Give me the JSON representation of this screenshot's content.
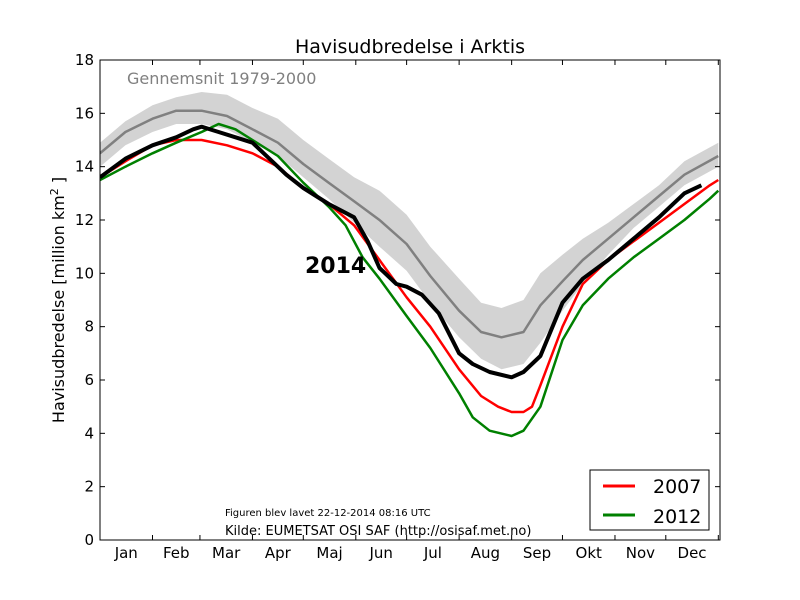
{
  "chart_data": {
    "type": "line",
    "title": "Havisudbredelse i Arktis",
    "ylabel": "Havisudbredelse [million km",
    "ylabel_sup": "2",
    "ylabel_end": " ]",
    "ylim": [
      0,
      18
    ],
    "xlim": [
      0,
      366
    ],
    "yticks": [
      0,
      2,
      4,
      6,
      8,
      10,
      12,
      14,
      16,
      18
    ],
    "months": [
      "Jan",
      "Feb",
      "Mar",
      "Apr",
      "Maj",
      "Jun",
      "Jul",
      "Aug",
      "Sep",
      "Okt",
      "Nov",
      "Dec"
    ],
    "month_starts": [
      0,
      31,
      59,
      90,
      120,
      151,
      181,
      212,
      243,
      273,
      304,
      334,
      365
    ],
    "grid": false,
    "legend_position": "bottom-right",
    "annotations": {
      "average_label": "Gennemsnit 1979-2000",
      "year_label": "2014",
      "created_note": "Figuren blev lavet 22-12-2014 08:16 UTC",
      "source_note": "Kilde: EUMETSAT OSI SAF (http://osisaf.met.no)"
    },
    "band": {
      "name": "",
      "color": "#d3d3d3",
      "x": [
        0,
        15,
        31,
        45,
        60,
        75,
        90,
        105,
        120,
        135,
        150,
        165,
        181,
        195,
        212,
        225,
        237,
        250,
        260,
        273,
        285,
        300,
        315,
        330,
        345,
        365
      ],
      "upper": [
        14.9,
        15.7,
        16.3,
        16.6,
        16.8,
        16.7,
        16.2,
        15.8,
        15.0,
        14.3,
        13.6,
        13.1,
        12.2,
        11.0,
        9.8,
        8.9,
        8.7,
        9.0,
        10.0,
        10.7,
        11.3,
        11.9,
        12.6,
        13.3,
        14.2,
        14.9
      ],
      "lower": [
        14.0,
        14.8,
        15.3,
        15.6,
        15.6,
        15.4,
        14.9,
        14.4,
        13.6,
        12.8,
        11.9,
        11.0,
        10.1,
        8.9,
        7.6,
        6.8,
        6.4,
        6.6,
        7.4,
        8.6,
        9.6,
        10.7,
        11.7,
        12.5,
        13.3,
        14.0
      ]
    },
    "series": [
      {
        "name": "",
        "label": "Gennemsnit 1979-2000",
        "color": "#808080",
        "width": 2.5,
        "x": [
          0,
          15,
          31,
          45,
          60,
          75,
          90,
          105,
          120,
          135,
          150,
          165,
          181,
          195,
          212,
          225,
          237,
          250,
          260,
          273,
          285,
          300,
          315,
          330,
          345,
          365
        ],
        "y": [
          14.5,
          15.3,
          15.8,
          16.1,
          16.1,
          15.9,
          15.4,
          14.9,
          14.1,
          13.4,
          12.7,
          12.0,
          11.1,
          9.9,
          8.6,
          7.8,
          7.6,
          7.8,
          8.8,
          9.7,
          10.5,
          11.3,
          12.1,
          12.9,
          13.7,
          14.4
        ]
      },
      {
        "name": "2007",
        "color": "#ff0000",
        "width": 2.5,
        "x": [
          0,
          15,
          31,
          45,
          60,
          75,
          90,
          105,
          120,
          135,
          150,
          165,
          181,
          195,
          212,
          225,
          235,
          243,
          250,
          255,
          260,
          273,
          285,
          300,
          315,
          330,
          345,
          360,
          365
        ],
        "y": [
          13.6,
          14.2,
          14.8,
          15.0,
          15.0,
          14.8,
          14.5,
          14.0,
          13.2,
          12.6,
          11.8,
          10.5,
          9.1,
          8.0,
          6.4,
          5.4,
          5.0,
          4.8,
          4.8,
          5.0,
          5.8,
          8.0,
          9.6,
          10.5,
          11.2,
          11.9,
          12.6,
          13.3,
          13.5
        ]
      },
      {
        "name": "2012",
        "color": "#008000",
        "width": 2.5,
        "x": [
          0,
          15,
          31,
          45,
          60,
          70,
          80,
          90,
          105,
          120,
          135,
          145,
          155,
          165,
          181,
          195,
          212,
          220,
          230,
          243,
          250,
          260,
          273,
          285,
          300,
          315,
          330,
          345,
          360,
          365
        ],
        "y": [
          13.5,
          14.0,
          14.5,
          14.9,
          15.3,
          15.6,
          15.4,
          15.0,
          14.4,
          13.4,
          12.5,
          11.8,
          10.6,
          9.8,
          8.4,
          7.2,
          5.5,
          4.6,
          4.1,
          3.9,
          4.1,
          5.0,
          7.5,
          8.8,
          9.8,
          10.6,
          11.3,
          12.0,
          12.8,
          13.1
        ]
      },
      {
        "name": "2014",
        "color": "#000000",
        "width": 4,
        "x": [
          0,
          15,
          31,
          45,
          55,
          60,
          70,
          80,
          90,
          100,
          110,
          120,
          135,
          150,
          158,
          165,
          175,
          181,
          190,
          200,
          212,
          220,
          230,
          243,
          250,
          260,
          273,
          285,
          300,
          315,
          330,
          345,
          355
        ],
        "y": [
          13.6,
          14.3,
          14.8,
          15.1,
          15.4,
          15.5,
          15.3,
          15.1,
          14.9,
          14.3,
          13.7,
          13.2,
          12.6,
          12.1,
          11.2,
          10.2,
          9.6,
          9.5,
          9.2,
          8.5,
          7.0,
          6.6,
          6.3,
          6.1,
          6.3,
          6.9,
          8.9,
          9.8,
          10.5,
          11.3,
          12.1,
          13.0,
          13.3
        ]
      }
    ]
  }
}
